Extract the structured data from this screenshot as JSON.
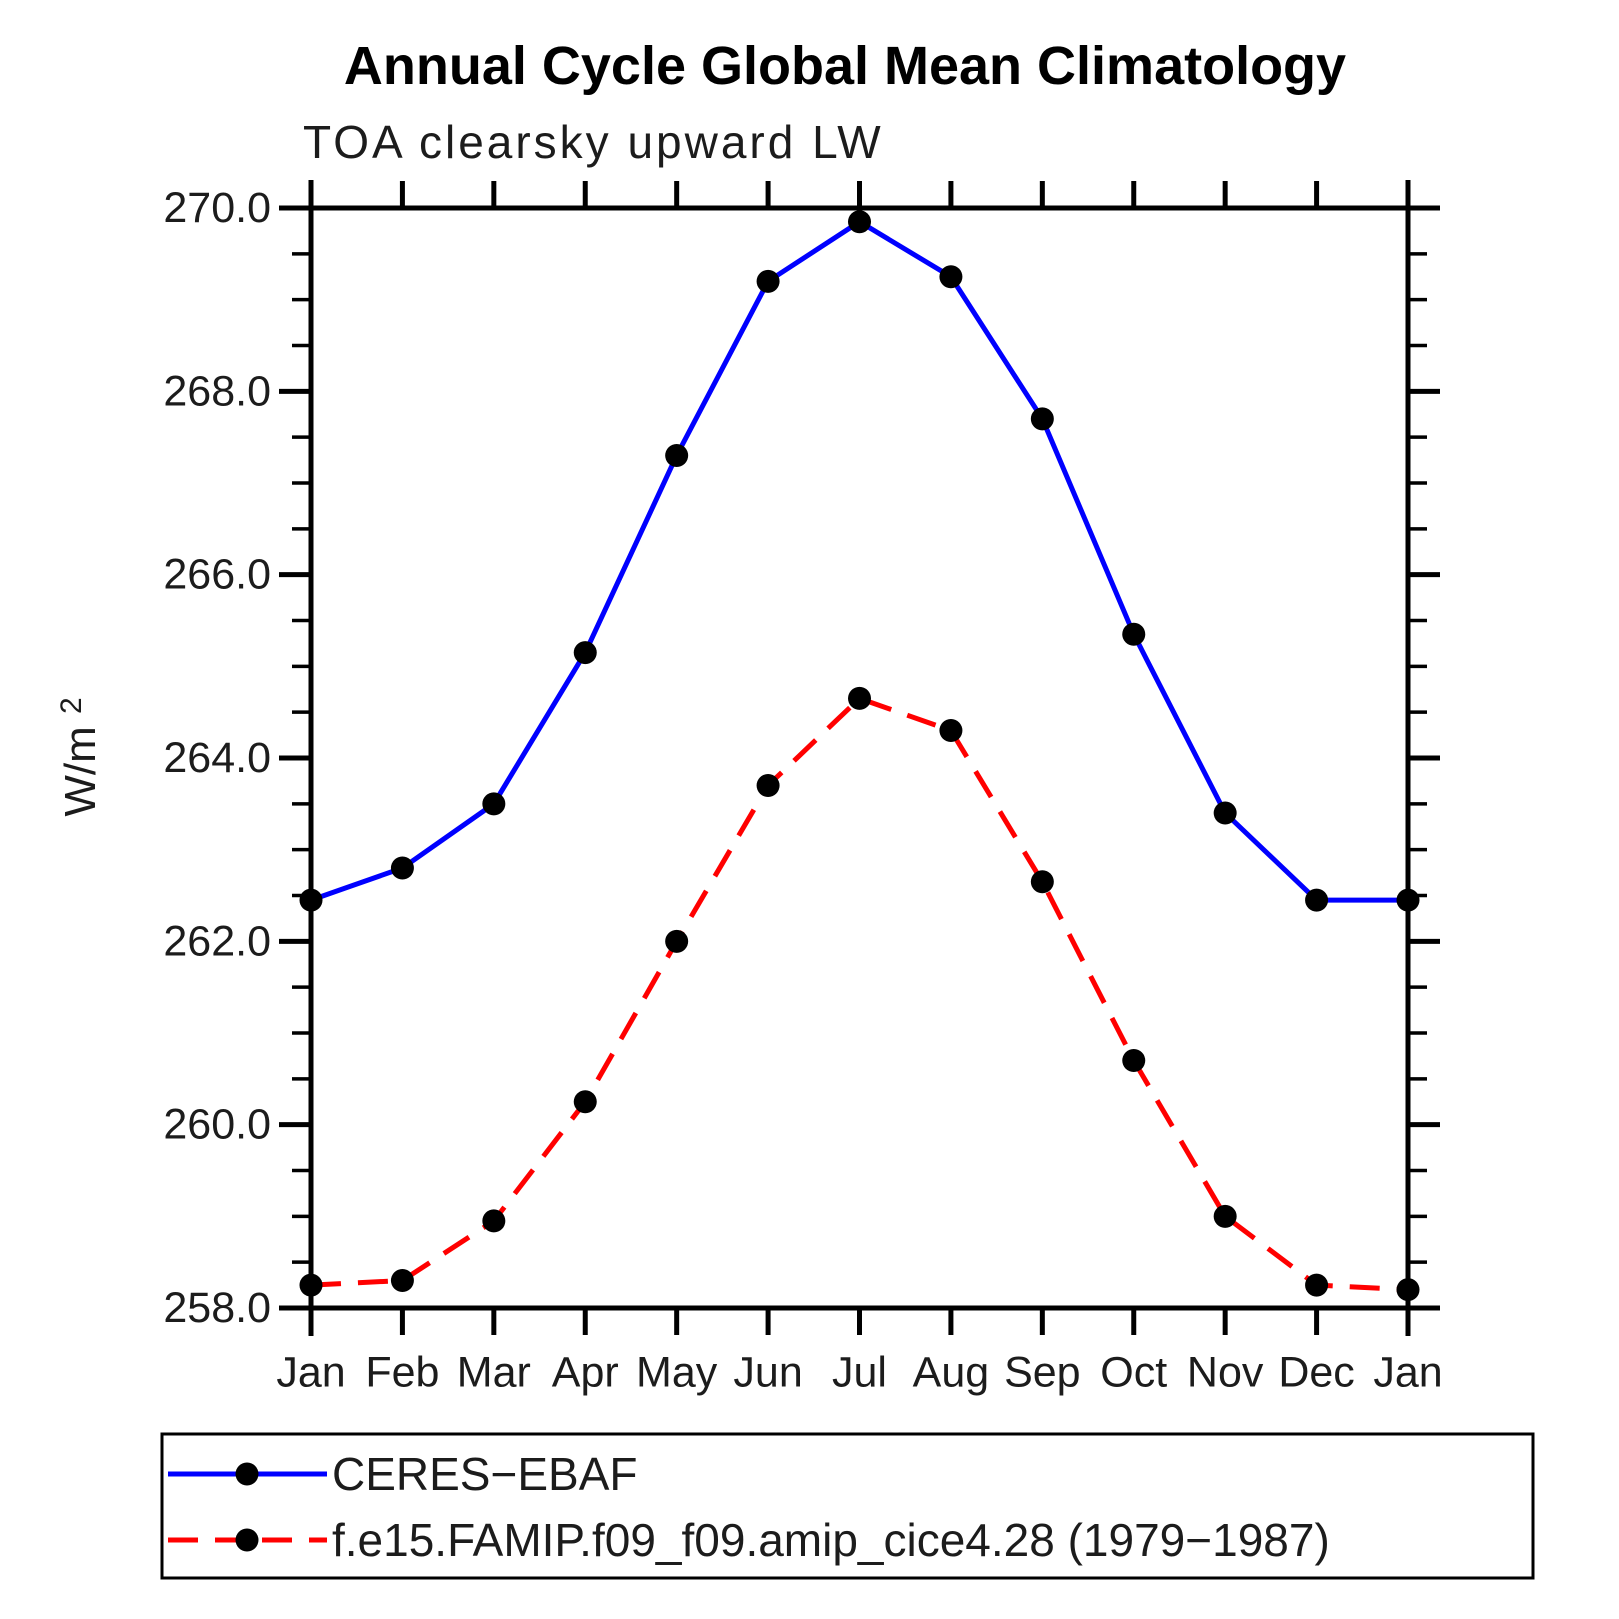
{
  "chart_data": {
    "type": "line",
    "title": "Annual Cycle Global Mean Climatology",
    "subtitle": "TOA clearsky upward LW",
    "ylabel_base": "W/m",
    "ylabel_exponent": "2",
    "xlabel": "",
    "ylim": [
      258.0,
      270.0
    ],
    "y_minor_tick_step": 0.5,
    "grid": false,
    "legend_position": "below-left",
    "categories": [
      "Jan",
      "Feb",
      "Mar",
      "Apr",
      "May",
      "Jun",
      "Jul",
      "Aug",
      "Sep",
      "Oct",
      "Nov",
      "Dec",
      "Jan"
    ],
    "y_ticks": [
      {
        "value": 258.0,
        "label": "258.0"
      },
      {
        "value": 260.0,
        "label": "260.0"
      },
      {
        "value": 262.0,
        "label": "262.0"
      },
      {
        "value": 264.0,
        "label": "264.0"
      },
      {
        "value": 266.0,
        "label": "266.0"
      },
      {
        "value": 268.0,
        "label": "268.0"
      },
      {
        "value": 270.0,
        "label": "270.0"
      }
    ],
    "series": [
      {
        "name": "CERES−EBAF",
        "color": "#0000ff",
        "line_style": "solid",
        "marker": "filled-circle",
        "marker_color": "#000000",
        "values": [
          262.45,
          262.8,
          263.5,
          265.15,
          267.3,
          269.2,
          269.85,
          269.25,
          267.7,
          265.35,
          263.4,
          262.45,
          262.45
        ]
      },
      {
        "name": "f.e15.FAMIP.f09_f09.amip_cice4.28 (1979−1987)",
        "color": "#ff0000",
        "line_style": "dashed",
        "marker": "filled-circle",
        "marker_color": "#000000",
        "values": [
          258.25,
          258.3,
          258.95,
          260.25,
          262.0,
          263.7,
          264.65,
          264.3,
          262.65,
          260.7,
          259.0,
          258.25,
          258.2
        ]
      }
    ]
  }
}
